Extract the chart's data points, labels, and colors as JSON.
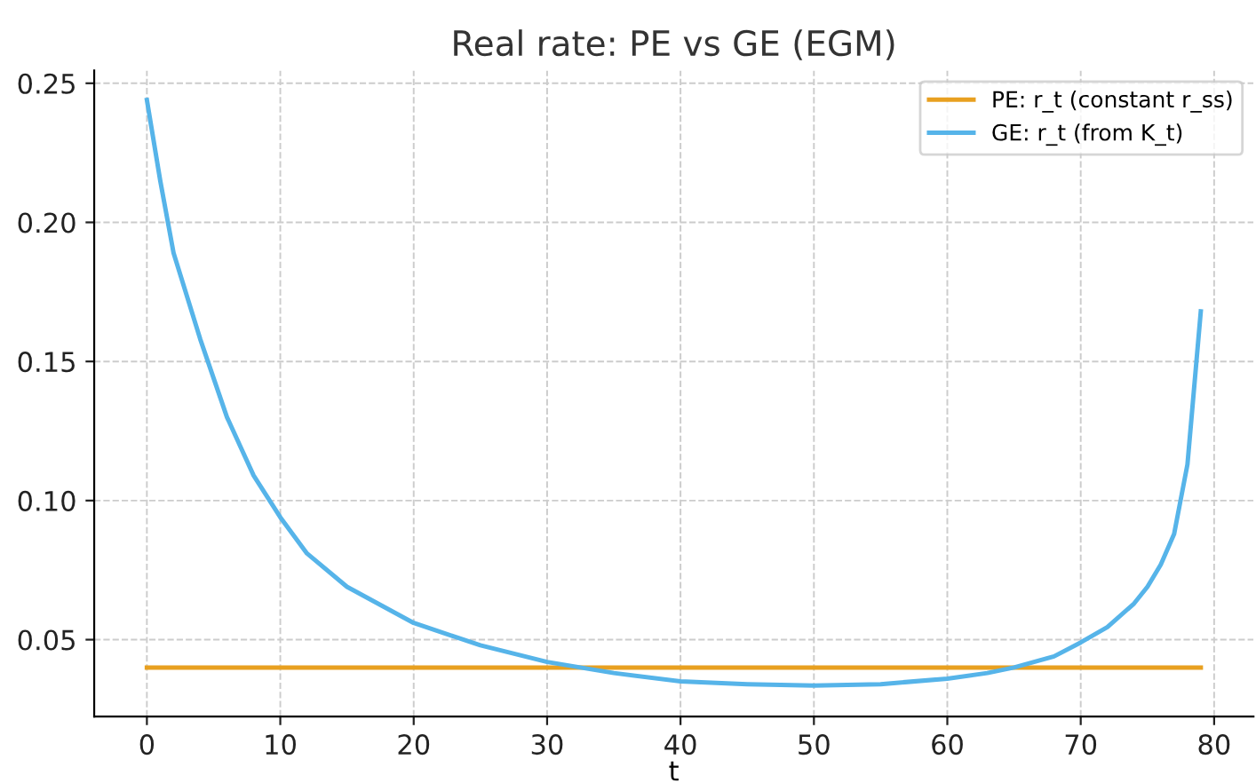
{
  "chart_data": {
    "type": "line",
    "title": "Real rate: PE vs GE (EGM)",
    "xlabel": "t",
    "xlim": [
      -3.95,
      82.95
    ],
    "ylim": [
      0.0224,
      0.2546
    ],
    "xticks": [
      0,
      10,
      20,
      30,
      40,
      50,
      60,
      70,
      80
    ],
    "yticks": [
      {
        "value": 0.05,
        "label": "0.05"
      },
      {
        "value": 0.1,
        "label": "0.10"
      },
      {
        "value": 0.15,
        "label": "0.15"
      },
      {
        "value": 0.2,
        "label": "0.20"
      },
      {
        "value": 0.25,
        "label": "0.25"
      }
    ],
    "grid": true,
    "legend": "top right",
    "line_style": "solid",
    "marker": "none",
    "series": [
      {
        "name": "PE: r_t (constant r_ss)",
        "color": "#e8a020",
        "x": [
          0,
          79
        ],
        "values": [
          0.04,
          0.04
        ]
      },
      {
        "name": "GE: r_t (from K_t)",
        "color": "#56b4e9",
        "x": [
          0,
          1,
          2,
          4,
          6,
          8,
          10,
          12,
          15,
          20,
          25,
          30,
          35,
          40,
          45,
          50,
          55,
          60,
          63,
          65,
          68,
          70,
          72,
          74,
          75,
          76,
          77,
          78,
          79
        ],
        "values": [
          0.244,
          0.215,
          0.189,
          0.158,
          0.13,
          0.109,
          0.094,
          0.081,
          0.069,
          0.056,
          0.048,
          0.042,
          0.038,
          0.035,
          0.034,
          0.0335,
          0.034,
          0.036,
          0.038,
          0.04,
          0.044,
          0.049,
          0.0545,
          0.063,
          0.069,
          0.077,
          0.088,
          0.113,
          0.168
        ]
      }
    ]
  }
}
